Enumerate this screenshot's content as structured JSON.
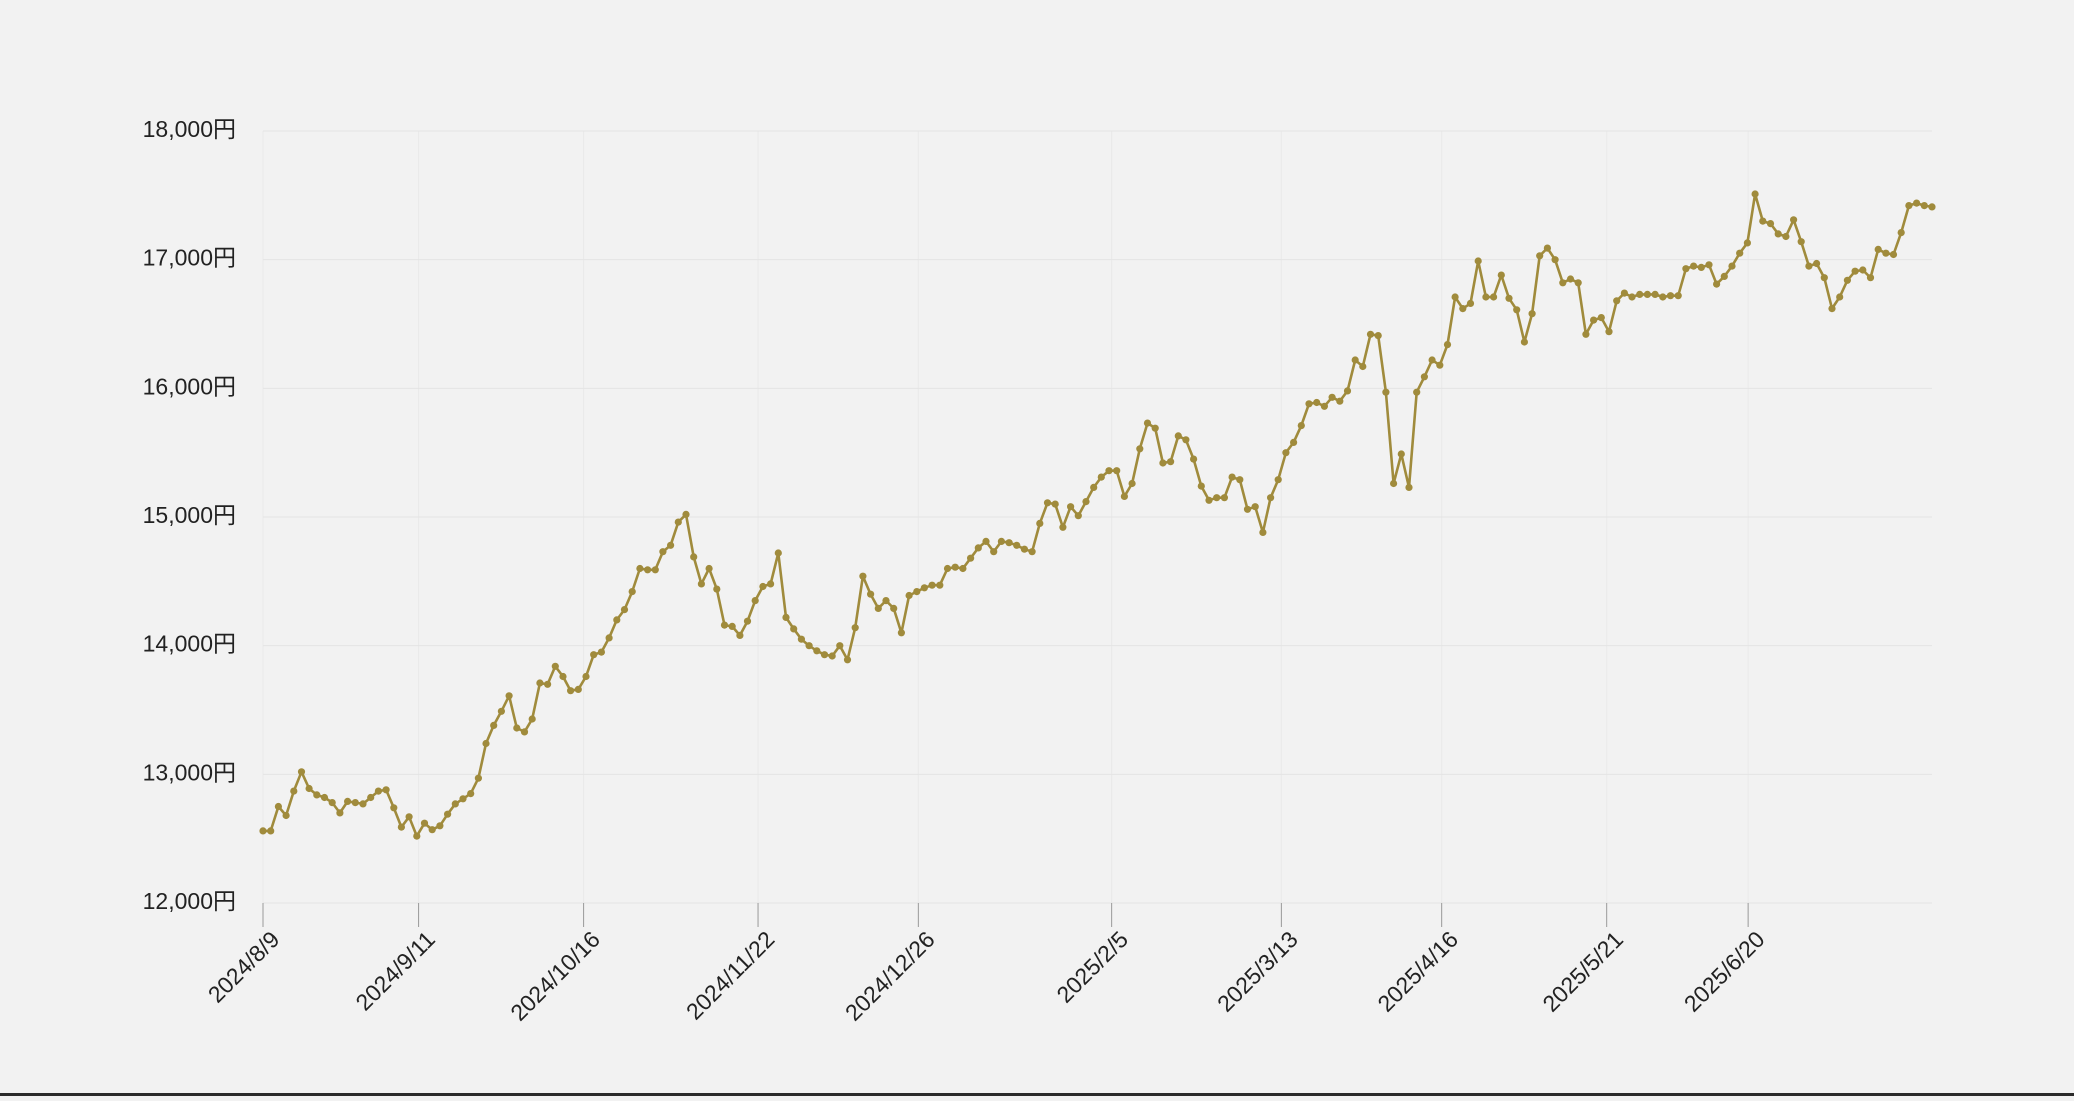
{
  "colors": {
    "background": "#f2f2f2",
    "series": "#a08b3c",
    "grid": "#e4e4e4",
    "text": "#222222"
  },
  "chart_data": {
    "type": "line",
    "title": "",
    "xlabel": "",
    "ylabel": "",
    "ylim": [
      12000,
      18000
    ],
    "xlim": [
      "2024-08-09",
      "2025-07-29"
    ],
    "grid": true,
    "legend": "none",
    "y_ticks": [
      {
        "value": 12000,
        "label": "12,000円"
      },
      {
        "value": 13000,
        "label": "13,000円"
      },
      {
        "value": 14000,
        "label": "14,000円"
      },
      {
        "value": 15000,
        "label": "15,000円"
      },
      {
        "value": 16000,
        "label": "16,000円"
      },
      {
        "value": 17000,
        "label": "17,000円"
      },
      {
        "value": 18000,
        "label": "18,000円"
      }
    ],
    "x_ticks": [
      {
        "date": "2024-08-09",
        "label": "2024/8/9"
      },
      {
        "date": "2024-09-11",
        "label": "2024/9/11"
      },
      {
        "date": "2024-10-16",
        "label": "2024/10/16"
      },
      {
        "date": "2024-11-22",
        "label": "2024/11/22"
      },
      {
        "date": "2024-12-26",
        "label": "2024/12/26"
      },
      {
        "date": "2025-02-05",
        "label": "2025/2/5"
      },
      {
        "date": "2025-03-13",
        "label": "2025/3/13"
      },
      {
        "date": "2025-04-16",
        "label": "2025/4/16"
      },
      {
        "date": "2025-05-21",
        "label": "2025/5/21"
      },
      {
        "date": "2025-06-20",
        "label": "2025/6/20"
      }
    ],
    "series": [
      {
        "values": [
          12560,
          12560,
          12750,
          12680,
          12870,
          13020,
          12890,
          12840,
          12820,
          12780,
          12700,
          12790,
          12780,
          12770,
          12820,
          12870,
          12880,
          12740,
          12590,
          12670,
          12520,
          12620,
          12570,
          12600,
          12690,
          12770,
          12810,
          12850,
          12970,
          13240,
          13380,
          13490,
          13610,
          13360,
          13330,
          13430,
          13710,
          13700,
          13840,
          13760,
          13650,
          13660,
          13760,
          13930,
          13950,
          14060,
          14200,
          14280,
          14420,
          14600,
          14590,
          14590,
          14730,
          14780,
          14960,
          15020,
          14690,
          14480,
          14600,
          14440,
          14160,
          14150,
          14080,
          14190,
          14350,
          14460,
          14480,
          14720,
          14220,
          14130,
          14050,
          14000,
          13960,
          13930,
          13920,
          14000,
          13890,
          14140,
          14540,
          14400,
          14290,
          14350,
          14290,
          14100,
          14390,
          14420,
          14450,
          14470,
          14470,
          14600,
          14610,
          14600,
          14680,
          14760,
          14810,
          14730,
          14810,
          14800,
          14780,
          14750,
          14730,
          14950,
          15110,
          15100,
          14920,
          15080,
          15010,
          15120,
          15230,
          15310,
          15360,
          15360,
          15160,
          15260,
          15530,
          15730,
          15690,
          15420,
          15430,
          15630,
          15600,
          15450,
          15240,
          15130,
          15150,
          15150,
          15310,
          15290,
          15060,
          15080,
          14880,
          15150,
          15290,
          15500,
          15580,
          15710,
          15880,
          15890,
          15860,
          15930,
          15900,
          15980,
          16220,
          16170,
          16420,
          16410,
          15970,
          15260,
          15490,
          15230,
          15970,
          16090,
          16220,
          16180,
          16340,
          16710,
          16620,
          16660,
          16990,
          16710,
          16710,
          16880,
          16700,
          16610,
          16360,
          16580,
          17030,
          17090,
          17000,
          16820,
          16850,
          16820,
          16420,
          16530,
          16550,
          16440,
          16680,
          16740,
          16710,
          16730,
          16730,
          16730,
          16710,
          16720,
          16720,
          16930,
          16950,
          16940,
          16960,
          16810,
          16870,
          16950,
          17050,
          17130,
          17510,
          17300,
          17280,
          17200,
          17180,
          17310,
          17140,
          16950,
          16970,
          16860,
          16620,
          16710,
          16840,
          16910,
          16920,
          16860,
          17080,
          17050,
          17040,
          17210,
          17420,
          17440,
          17420,
          17410
        ]
      }
    ]
  }
}
